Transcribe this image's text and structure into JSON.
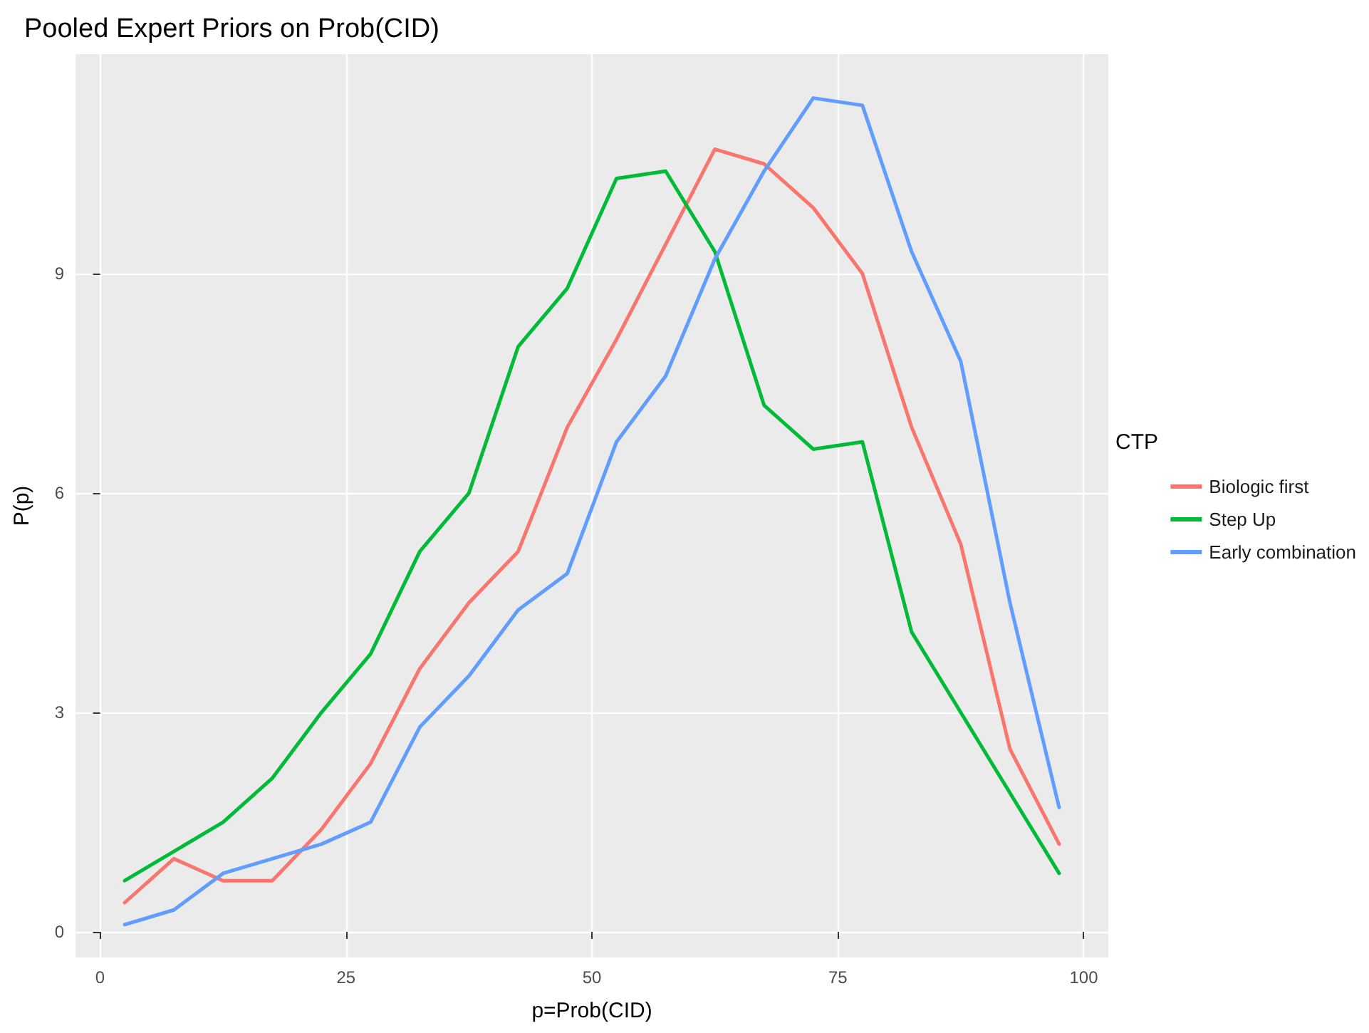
{
  "chart_data": {
    "type": "line",
    "title": "Pooled Expert Priors on Prob(CID)",
    "xlabel": "p=Prob(CID)",
    "ylabel": "P(p)",
    "legend_title": "CTP",
    "x": [
      2.5,
      7.5,
      12.5,
      17.5,
      22.5,
      27.5,
      32.5,
      37.5,
      42.5,
      47.5,
      52.5,
      57.5,
      62.5,
      67.5,
      72.5,
      77.5,
      82.5,
      87.5,
      92.5,
      97.5
    ],
    "series": [
      {
        "name": "Biologic first",
        "color": "#f8766d",
        "values": [
          0.4,
          1.0,
          0.7,
          0.7,
          1.4,
          2.3,
          3.6,
          4.5,
          5.2,
          6.9,
          8.1,
          9.4,
          10.7,
          10.5,
          9.9,
          9.0,
          6.9,
          5.3,
          2.5,
          1.2
        ]
      },
      {
        "name": "Step Up",
        "color": "#00ba38",
        "values": [
          0.7,
          1.1,
          1.5,
          2.1,
          3.0,
          3.8,
          5.2,
          6.0,
          8.0,
          8.8,
          10.3,
          10.4,
          9.3,
          7.2,
          6.6,
          6.7,
          4.1,
          3.0,
          1.9,
          0.8
        ]
      },
      {
        "name": "Early combination",
        "color": "#619cff",
        "values": [
          0.1,
          0.3,
          0.8,
          1.0,
          1.2,
          1.5,
          2.8,
          3.5,
          4.4,
          4.9,
          6.7,
          7.6,
          9.2,
          10.4,
          11.4,
          11.3,
          9.3,
          7.8,
          4.5,
          1.7
        ]
      }
    ],
    "xlim": [
      -2.5,
      102.5
    ],
    "xticks": [
      0,
      25,
      50,
      75,
      100
    ],
    "ylim": [
      -0.35,
      12
    ],
    "yticks": [
      0,
      3,
      6,
      9
    ],
    "grid": true,
    "legend": "right",
    "marker": "none",
    "line_style": "solid"
  }
}
